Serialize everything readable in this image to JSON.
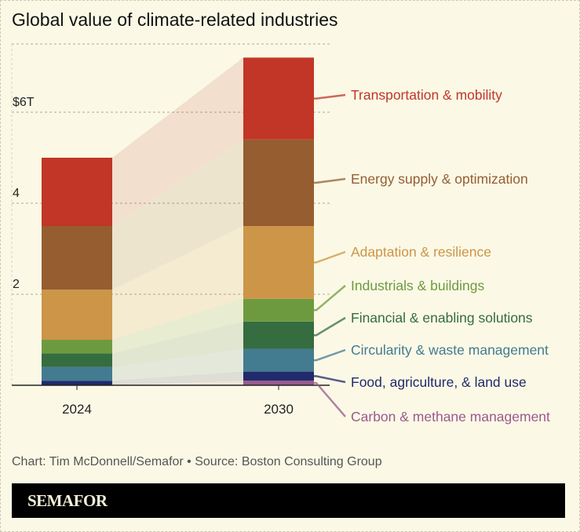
{
  "title": "Global value of climate-related industries",
  "credit": "Chart: Tim McDonnell/Semafor • Source: Boston Consulting Group",
  "logo": "SEMAFOR",
  "chart_data": {
    "type": "bar",
    "stacked": true,
    "categories": [
      "2024",
      "2030"
    ],
    "ylim": [
      0,
      7.5
    ],
    "yticks": [
      {
        "value": 2,
        "label": "2"
      },
      {
        "value": 4,
        "label": "4"
      },
      {
        "value": 6,
        "label": "$6T"
      }
    ],
    "grid": true,
    "legend": "right, direct labels",
    "series": [
      {
        "name": "Carbon & methane management",
        "color": "#9a5a8e",
        "values": [
          0.0,
          0.1
        ]
      },
      {
        "name": "Food, agriculture, & land use",
        "color": "#212a6c",
        "values": [
          0.1,
          0.2
        ]
      },
      {
        "name": "Circularity & waste management",
        "color": "#437b91",
        "values": [
          0.3,
          0.5
        ]
      },
      {
        "name": "Financial & enabling solutions",
        "color": "#356c40",
        "values": [
          0.3,
          0.6
        ]
      },
      {
        "name": "Industrials & buildings",
        "color": "#6e9a3f",
        "values": [
          0.3,
          0.5
        ]
      },
      {
        "name": "Adaptation & resilience",
        "color": "#cc9548",
        "values": [
          1.1,
          1.6
        ]
      },
      {
        "name": "Energy supply & optimization",
        "color": "#955d30",
        "values": [
          1.4,
          1.9
        ]
      },
      {
        "name": "Transportation & mobility",
        "color": "#c13626",
        "values": [
          1.5,
          1.8
        ]
      }
    ]
  }
}
